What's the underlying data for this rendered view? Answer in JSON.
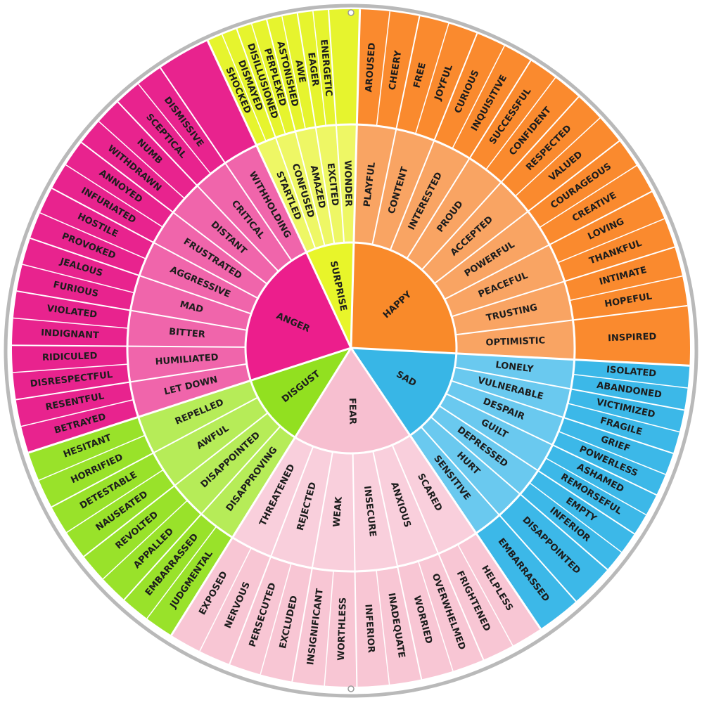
{
  "colors": {
    "happy": [
      "#f98a2a",
      "#f9a463",
      "#fa8a2e"
    ],
    "sad": [
      "#38b6e6",
      "#6ac9ef",
      "#3cb8e8"
    ],
    "fear": [
      "#f7bfd0",
      "#f9cfdc",
      "#f8c6d4"
    ],
    "disgust": [
      "#92e020",
      "#b6ec58",
      "#99e22a"
    ],
    "anger": [
      "#ec1e8c",
      "#f065ab",
      "#e8238e"
    ],
    "surprise": [
      "#e8f52a",
      "#eef765",
      "#e6f42e"
    ],
    "text": "#1d1d1d",
    "rim": "#b9b9b9"
  },
  "wheel": [
    {
      "key": "happy",
      "label": "HAPPY",
      "start": 1.5,
      "end": 93,
      "middle": [
        {
          "label": "PLAYFUL",
          "outer": [
            "AROUSED",
            "CHEERY"
          ]
        },
        {
          "label": "CONTENT",
          "outer": [
            "FREE",
            "JOYFUL"
          ]
        },
        {
          "label": "INTERESTED",
          "outer": [
            "CURIOUS",
            "INQUISITIVE"
          ]
        },
        {
          "label": "PROUD",
          "outer": [
            "SUCCESSFUL",
            "CONFIDENT"
          ]
        },
        {
          "label": "ACCEPTED",
          "outer": [
            "RESPECTED",
            "VALUED"
          ]
        },
        {
          "label": "POWERFUL",
          "outer": [
            "COURAGEOUS",
            "CREATIVE"
          ]
        },
        {
          "label": "PEACEFUL",
          "outer": [
            "LOVING",
            "THANKFUL"
          ]
        },
        {
          "label": "TRUSTING",
          "outer": [
            "INTIMATE",
            "HOPEFUL"
          ]
        },
        {
          "label": "OPTIMISTIC",
          "outer": [
            "INSPIRED"
          ]
        }
      ]
    },
    {
      "key": "sad",
      "label": "SAD",
      "start": 93,
      "end": 146,
      "middle": [
        {
          "label": "LONELY",
          "outer": [
            "ISOLATED",
            "ABANDONED"
          ]
        },
        {
          "label": "VULNERABLE",
          "outer": [
            "VICTIMIZED",
            "FRAGILE"
          ]
        },
        {
          "label": "DESPAIR",
          "outer": [
            "GRIEF",
            "POWERLESS"
          ]
        },
        {
          "label": "GUILT",
          "outer": [
            "ASHAMED",
            "REMORSEFUL"
          ]
        },
        {
          "label": "DEPRESSED",
          "outer": [
            "EMPTY",
            "INFERIOR"
          ]
        },
        {
          "label": "HURT",
          "outer": [
            "DISAPPOINTED"
          ]
        },
        {
          "label": "SENSITIVE",
          "outer": [
            "EMBARRASSED"
          ]
        }
      ]
    },
    {
      "key": "fear",
      "label": "FEAR",
      "start": 146,
      "end": 212,
      "middle": [
        {
          "label": "SCARED",
          "outer": [
            "HELPLESS",
            "FRIGHTENED"
          ]
        },
        {
          "label": "ANXIOUS",
          "outer": [
            "OVERWHELMED",
            "WORRIED"
          ]
        },
        {
          "label": "INSECURE",
          "outer": [
            "INADEQUATE",
            "INFERIOR"
          ]
        },
        {
          "label": "WEAK",
          "outer": [
            "WORTHLESS",
            "INSIGNIFICANT"
          ]
        },
        {
          "label": "REJECTED",
          "outer": [
            "EXCLUDED",
            "PERSECUTED"
          ]
        },
        {
          "label": "THREATENED",
          "outer": [
            "NERVOUS",
            "EXPOSED"
          ]
        }
      ]
    },
    {
      "key": "disgust",
      "label": "DISGUST",
      "start": 212,
      "end": 252,
      "middle": [
        {
          "label": "DISAPPROVING",
          "outer": [
            "JUDGMENTAL",
            "EMBARRASSED"
          ]
        },
        {
          "label": "DISAPPOINTED",
          "outer": [
            "APPALLED",
            "REVOLTED"
          ]
        },
        {
          "label": "AWFUL",
          "outer": [
            "NAUSEATED",
            "DETESTABLE"
          ]
        },
        {
          "label": "REPELLED",
          "outer": [
            "HORRIFIED",
            "HESITANT"
          ]
        }
      ]
    },
    {
      "key": "anger",
      "label": "ANGER",
      "start": 252,
      "end": 335,
      "middle": [
        {
          "label": "LET DOWN",
          "outer": [
            "BETRAYED",
            "RESENTFUL"
          ]
        },
        {
          "label": "HUMILIATED",
          "outer": [
            "DISRESPECTFUL",
            "RIDICULED"
          ]
        },
        {
          "label": "BITTER",
          "outer": [
            "INDIGNANT",
            "VIOLATED"
          ]
        },
        {
          "label": "MAD",
          "outer": [
            "FURIOUS",
            "JEALOUS"
          ]
        },
        {
          "label": "AGGRESSIVE",
          "outer": [
            "PROVOKED",
            "HOSTILE"
          ]
        },
        {
          "label": "FRUSTRATED",
          "outer": [
            "INFURIATED",
            "ANNOYED"
          ]
        },
        {
          "label": "DISTANT",
          "outer": [
            "WITHDRAWN",
            "NUMB"
          ]
        },
        {
          "label": "CRITICAL",
          "outer": [
            "SCEPTICAL",
            "DISMISSIVE"
          ]
        },
        {
          "label": "WITHHOLDING",
          "outer": []
        }
      ]
    },
    {
      "key": "surprise",
      "label": "SURPRISE",
      "start": 335,
      "end": 361.5,
      "middle": [
        {
          "label": "STARTLED",
          "outer": [
            "SHOCKED",
            "DISMAYED"
          ]
        },
        {
          "label": "CONFUSED",
          "outer": [
            "DISILLUSIONED",
            "PERPLEXED"
          ]
        },
        {
          "label": "AMAZED",
          "outer": [
            "ASTONISHED",
            "AWE"
          ]
        },
        {
          "label": "EXCITED",
          "outer": [
            "EAGER",
            "ENERGETIC"
          ]
        },
        {
          "label": "WONDER",
          "outer": []
        }
      ]
    }
  ]
}
